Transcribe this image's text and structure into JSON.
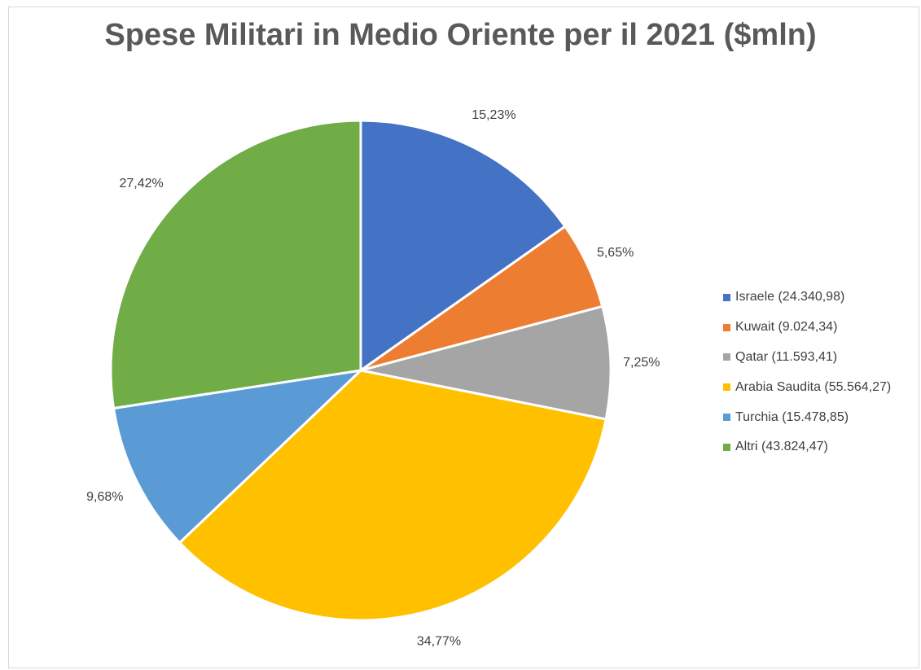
{
  "chart_data": {
    "type": "pie",
    "title": "Spese Militari in Medio Oriente per il 2021 ($mln)",
    "legend_position": "right",
    "slices": [
      {
        "label": "Israele (24.340,98)",
        "value": 24340.98,
        "percent_label": "15,23%",
        "color": "#4472c4"
      },
      {
        "label": "Kuwait (9.024,34)",
        "value": 9024.34,
        "percent_label": "5,65%",
        "color": "#ed7d31"
      },
      {
        "label": "Qatar (11.593,41)",
        "value": 11593.41,
        "percent_label": "7,25%",
        "color": "#a5a5a5"
      },
      {
        "label": "Arabia Saudita (55.564,27)",
        "value": 55564.27,
        "percent_label": "34,77%",
        "color": "#ffc000"
      },
      {
        "label": "Turchia (15.478,85)",
        "value": 15478.85,
        "percent_label": "9,68%",
        "color": "#5b9bd5"
      },
      {
        "label": "Altri (43.824,47)",
        "value": 43824.47,
        "percent_label": "27,42%",
        "color": "#70ad47"
      }
    ]
  }
}
